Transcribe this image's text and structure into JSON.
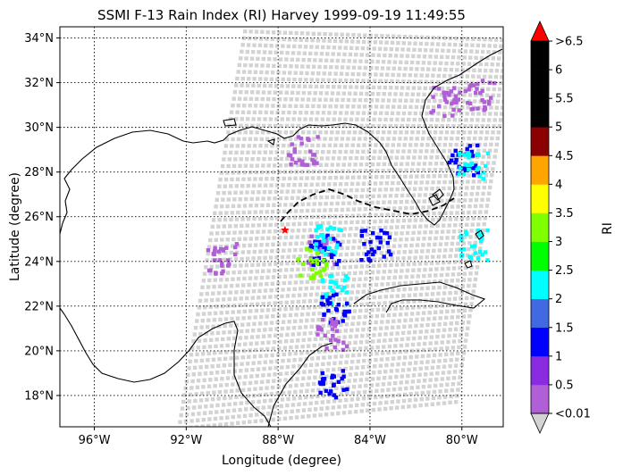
{
  "chart_data": {
    "type": "map",
    "title": "SSMI F-13 Rain Index (RI) Harvey 1999-09-19 11:49:55",
    "xlabel": "Longitude (degree)",
    "ylabel": "Latitude (degree)",
    "xlim": [
      -97.5,
      -78.2
    ],
    "ylim": [
      16.6,
      34.5
    ],
    "grid": true,
    "x_ticks": [
      {
        "value": -96,
        "label": "96°W"
      },
      {
        "value": -92,
        "label": "92°W"
      },
      {
        "value": -88,
        "label": "88°W"
      },
      {
        "value": -84,
        "label": "84°W"
      },
      {
        "value": -80,
        "label": "80°W"
      }
    ],
    "y_ticks": [
      {
        "value": 18,
        "label": "18°N"
      },
      {
        "value": 20,
        "label": "20°N"
      },
      {
        "value": 22,
        "label": "22°N"
      },
      {
        "value": 24,
        "label": "24°N"
      },
      {
        "value": 26,
        "label": "26°N"
      },
      {
        "value": 28,
        "label": "28°N"
      },
      {
        "value": 30,
        "label": "30°N"
      },
      {
        "value": 32,
        "label": "32°N"
      },
      {
        "value": 34,
        "label": "34°N"
      }
    ],
    "colorbar": {
      "label": "RI",
      "bins": [
        {
          "color": "#b05fd6"
        },
        {
          "color": "#8a2be2"
        },
        {
          "color": "#0000ff"
        },
        {
          "color": "#4169e1"
        },
        {
          "color": "#00ffff"
        },
        {
          "color": "#00ff00"
        },
        {
          "color": "#7fff00"
        },
        {
          "color": "#ffff00"
        },
        {
          "color": "#ffa500"
        },
        {
          "color": "#8b0000"
        },
        {
          "color": "#000000"
        },
        {
          "color": "#000000"
        },
        {
          "color": "#000000"
        }
      ],
      "under_color": "#d3d3d3",
      "over_color": "#ff0000",
      "tick_labels": [
        "<0.01",
        "0.5",
        "1",
        "1.5",
        "2",
        "2.5",
        "3",
        "3.5",
        "4",
        "4.5",
        "5",
        "5.5",
        "6",
        ">6.5"
      ]
    },
    "swath_color": "#d3d3d3",
    "storm_center": {
      "lon": -87.7,
      "lat": 25.4,
      "marker": "star",
      "color": "#ff0000"
    },
    "rain_regions": [
      {
        "lon": -86.2,
        "lat": 24.6,
        "color": "#b05fd6"
      },
      {
        "lon": -86.0,
        "lat": 24.6,
        "color": "#0000ff"
      },
      {
        "lon": -85.8,
        "lat": 25.0,
        "color": "#00ffff"
      },
      {
        "lon": -86.6,
        "lat": 24.0,
        "color": "#7fff00"
      },
      {
        "lon": -85.6,
        "lat": 22.8,
        "color": "#00ffff"
      },
      {
        "lon": -85.6,
        "lat": 22.0,
        "color": "#0000ff"
      },
      {
        "lon": -85.7,
        "lat": 20.8,
        "color": "#b05fd6"
      },
      {
        "lon": -85.6,
        "lat": 18.6,
        "color": "#0000ff"
      },
      {
        "lon": -83.8,
        "lat": 24.8,
        "color": "#0000ff"
      },
      {
        "lon": -80.0,
        "lat": 28.6,
        "color": "#0000ff"
      },
      {
        "lon": -79.6,
        "lat": 28.4,
        "color": "#00ffff"
      },
      {
        "lon": -79.6,
        "lat": 24.8,
        "color": "#00ffff"
      },
      {
        "lon": -79.3,
        "lat": 31.5,
        "color": "#b05fd6"
      },
      {
        "lon": -80.8,
        "lat": 31.2,
        "color": "#b05fd6"
      },
      {
        "lon": -90.5,
        "lat": 24.2,
        "color": "#b05fd6"
      },
      {
        "lon": -87.0,
        "lat": 29.0,
        "color": "#b05fd6"
      }
    ]
  }
}
